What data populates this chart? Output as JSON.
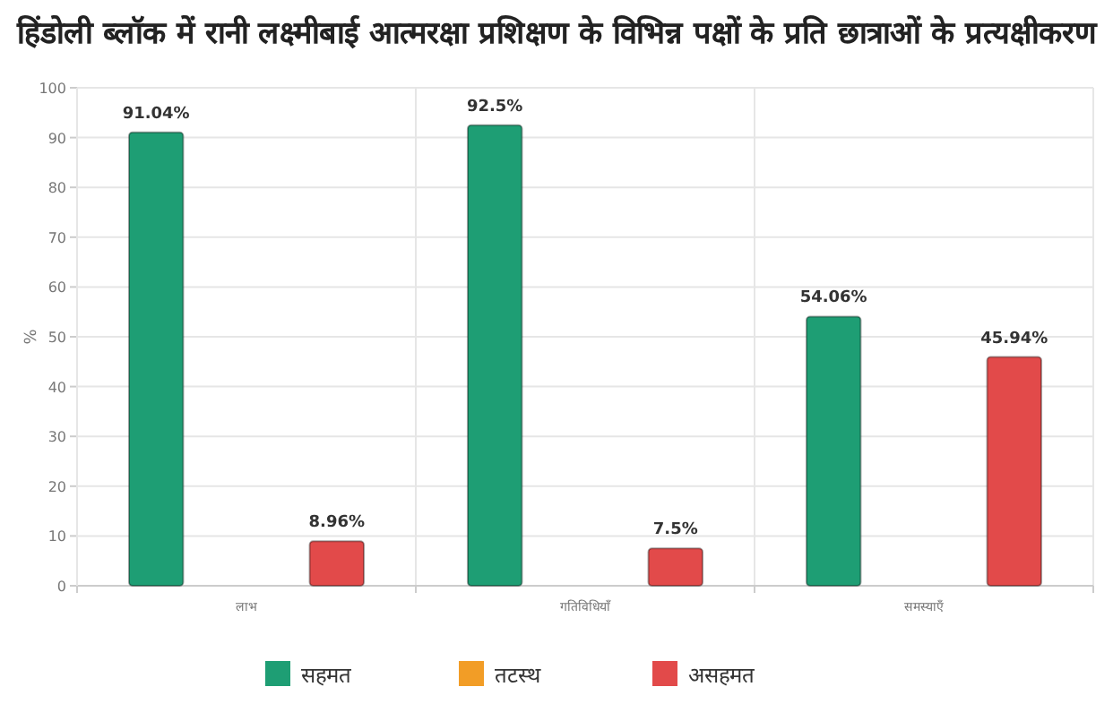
{
  "chart_data": {
    "type": "bar",
    "title": "हिंडोली ब्लॉक में रानी लक्ष्मीबाई आत्मरक्षा प्रशिक्षण के विभिन्न पक्षों के प्रति छात्राओं के प्रत्यक्षीकरण",
    "ylabel": "%",
    "categories": [
      "लाभ",
      "गतिविधियाँ",
      "समस्याएँ"
    ],
    "series": [
      {
        "name": "सहमत",
        "color": "#1e9e74",
        "values": [
          91.04,
          92.5,
          54.06
        ],
        "value_labels": [
          "91.04%",
          "92.5%",
          "54.06%"
        ]
      },
      {
        "name": "तटस्थ",
        "color": "#f29d26",
        "values": [
          null,
          null,
          null
        ]
      },
      {
        "name": "असहमत",
        "color": "#e24a4a",
        "values": [
          8.96,
          7.5,
          45.94
        ],
        "value_labels": [
          "8.96%",
          "7.5%",
          "45.94%"
        ]
      }
    ],
    "ylim": [
      0,
      100
    ],
    "yticks": [
      0,
      10,
      20,
      30,
      40,
      50,
      60,
      70,
      80,
      90,
      100
    ],
    "grid": true,
    "legend": "bottom"
  }
}
